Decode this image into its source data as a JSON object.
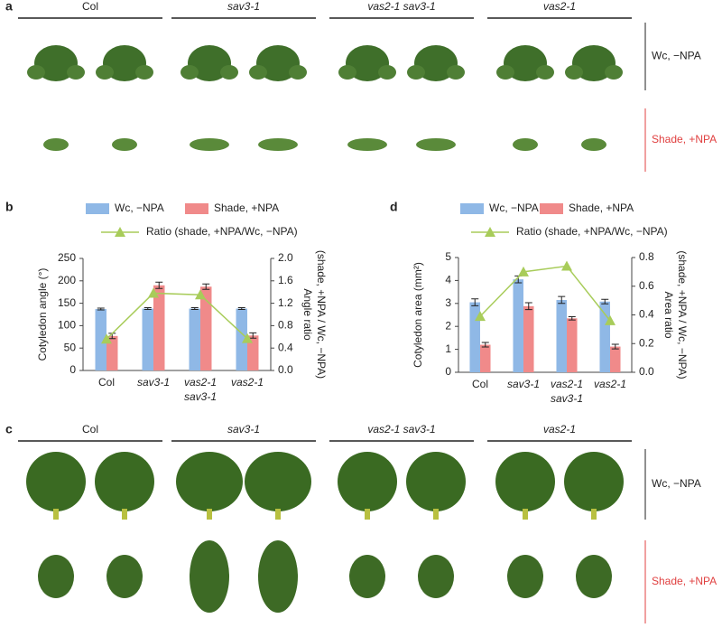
{
  "panel_a": {
    "label": "a",
    "genotypes": [
      "Col",
      "sav3-1",
      "vas2-1 sav3-1",
      "vas2-1"
    ],
    "conditions": [
      "Wc, −NPA",
      "Shade, +NPA"
    ]
  },
  "panel_c": {
    "label": "c",
    "genotypes": [
      "Col",
      "sav3-1",
      "vas2-1 sav3-1",
      "vas2-1"
    ],
    "conditions": [
      "Wc, −NPA",
      "Shade, +NPA"
    ]
  },
  "chart_data": [
    {
      "type": "bar",
      "panel_label": "b",
      "categories": [
        "Col",
        "sav3-1",
        "vas2-1 sav3-1",
        "vas2-1"
      ],
      "ylabel": "Cotyledon angle (°)",
      "y2label": [
        "Angle ratio",
        "(shade, +NPA / Wc, −NPA)"
      ],
      "ylim": [
        0,
        250
      ],
      "yticks": [
        0,
        50,
        100,
        150,
        200,
        250
      ],
      "y2lim": [
        0,
        2.0
      ],
      "y2ticks": [
        {
          "value": 0,
          "label": "0.0"
        },
        0.4,
        0.8,
        1.2,
        1.6,
        {
          "value": 2,
          "label": "2.0"
        }
      ],
      "series": [
        {
          "name": "Wc, −NPA",
          "color": "#8fb8e6",
          "values": [
            137,
            138,
            138,
            138
          ],
          "errors": [
            2,
            2,
            2,
            2
          ]
        },
        {
          "name": "Shade, +NPA",
          "color": "#f08a8a",
          "values": [
            77,
            190,
            187,
            78
          ],
          "errors": [
            6,
            7,
            6,
            6
          ]
        },
        {
          "name": "Ratio (shade, +NPA/Wc, −NPA)",
          "color": "#a8cc5a",
          "axis": "y2",
          "values": [
            0.56,
            1.38,
            1.35,
            0.57
          ]
        }
      ]
    },
    {
      "type": "bar",
      "panel_label": "d",
      "categories": [
        "Col",
        "sav3-1",
        "vas2-1 sav3-1",
        "vas2-1"
      ],
      "ylabel": "Cotyledon area (mm²)",
      "y2label": [
        "Area ratio",
        "(shade, +NPA / Wc, −NPA)"
      ],
      "ylim": [
        0,
        5
      ],
      "yticks": [
        0,
        1,
        2,
        3,
        4,
        5
      ],
      "y2lim": [
        0,
        0.8
      ],
      "y2ticks": [
        {
          "value": 0,
          "label": "0.0"
        },
        0.2,
        0.4,
        0.6,
        0.8
      ],
      "series": [
        {
          "name": "Wc, −NPA",
          "color": "#8fb8e6",
          "values": [
            3.05,
            4.05,
            3.15,
            3.08
          ],
          "errors": [
            0.15,
            0.15,
            0.15,
            0.1
          ]
        },
        {
          "name": "Shade, +NPA",
          "color": "#f08a8a",
          "values": [
            1.2,
            2.88,
            2.35,
            1.12
          ],
          "errors": [
            0.1,
            0.15,
            0.07,
            0.1
          ]
        },
        {
          "name": "Ratio (shade, +NPA/Wc, −NPA)",
          "color": "#a8cc5a",
          "axis": "y2",
          "values": [
            0.39,
            0.7,
            0.74,
            0.36
          ]
        }
      ]
    }
  ]
}
